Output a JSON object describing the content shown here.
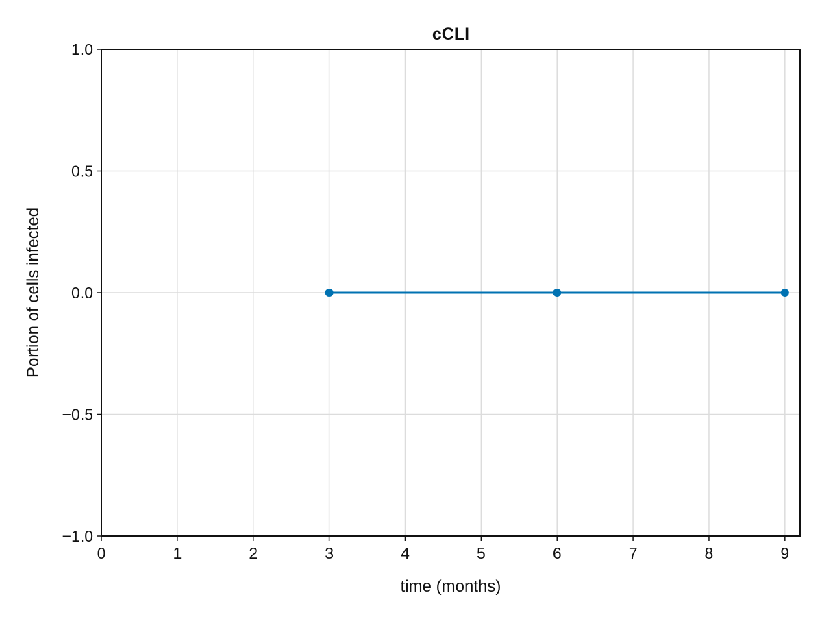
{
  "chart_data": {
    "type": "line",
    "title": "cCLI",
    "xlabel": "time (months)",
    "ylabel": "Portion of cells infected",
    "xlim": [
      0,
      9.2
    ],
    "ylim": [
      -1.0,
      1.0
    ],
    "x_ticks": [
      0,
      1,
      2,
      3,
      4,
      5,
      6,
      7,
      8,
      9
    ],
    "x_tick_labels": [
      "0",
      "1",
      "2",
      "3",
      "4",
      "5",
      "6",
      "7",
      "8",
      "9"
    ],
    "y_ticks": [
      -1.0,
      -0.5,
      0.0,
      0.5,
      1.0
    ],
    "y_tick_labels": [
      "−1.0",
      "−0.5",
      "0.0",
      "0.5",
      "1.0"
    ],
    "grid": true,
    "series": [
      {
        "x": [
          3,
          6,
          9
        ],
        "y": [
          0.0,
          0.0,
          0.0
        ],
        "color": "#0072b2",
        "markers": true
      }
    ]
  }
}
